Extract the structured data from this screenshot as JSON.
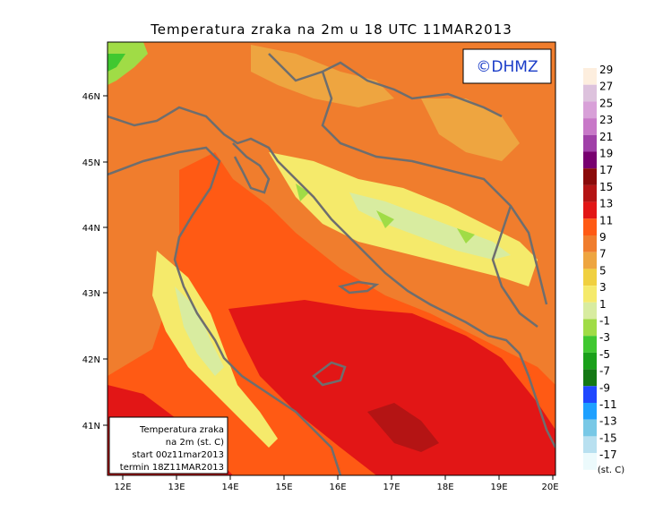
{
  "title": "Temperatura zraka na 2m u 18 UTC 11MAR2013",
  "logo_text": "©DHMZ",
  "lat_labels": [
    "46N",
    "45N",
    "44N",
    "43N",
    "42N",
    "41N"
  ],
  "lon_labels": [
    "12E",
    "13E",
    "14E",
    "15E",
    "16E",
    "17E",
    "18E",
    "19E",
    "20E"
  ],
  "info_box": {
    "line1": "Temperatura zraka",
    "line2": "na 2m (st. C)",
    "line3": "start 00z11mar2013",
    "line4": "termin 18Z11MAR2013"
  },
  "legend": {
    "unit": "(st. C)",
    "levels": [
      "29",
      "27",
      "25",
      "23",
      "21",
      "19",
      "17",
      "15",
      "13",
      "11",
      "9",
      "7",
      "5",
      "3",
      "1",
      "-1",
      "-3",
      "-5",
      "-7",
      "-9",
      "-11",
      "-13",
      "-15",
      "-17"
    ],
    "colors": [
      "#fdeede",
      "#ddc2dd",
      "#d8a0d8",
      "#c878c8",
      "#a040a8",
      "#780070",
      "#8a0a0a",
      "#b41414",
      "#e21616",
      "#ff5a14",
      "#f07d2d",
      "#eea540",
      "#f0d040",
      "#f5ea6b",
      "#d8eca0",
      "#a0dc46",
      "#40c830",
      "#1aa01a",
      "#147814",
      "#2048ff",
      "#1ea0ff",
      "#78c8e6",
      "#b8e0f0",
      "#ecfafc"
    ]
  }
}
